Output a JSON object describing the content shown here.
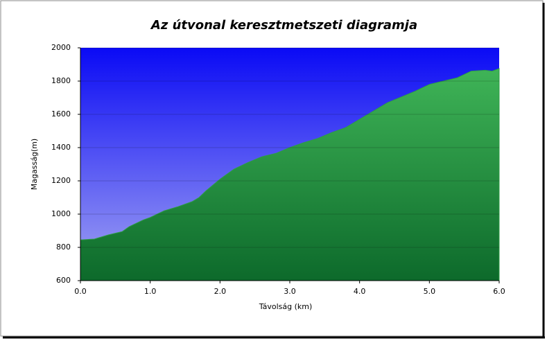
{
  "chart_data": {
    "type": "area",
    "title": "Az útvonal keresztmetszeti diagramja",
    "x_label": "Távolság  (km)",
    "y_label": "Magasság(m)",
    "x": [
      0.0,
      0.2,
      0.4,
      0.6,
      0.7,
      0.9,
      1.0,
      1.2,
      1.4,
      1.6,
      1.7,
      1.8,
      2.0,
      2.2,
      2.4,
      2.6,
      2.8,
      3.0,
      3.2,
      3.4,
      3.6,
      3.8,
      4.0,
      4.2,
      4.4,
      4.6,
      4.8,
      5.0,
      5.2,
      5.4,
      5.6,
      5.8,
      5.9,
      6.0
    ],
    "values": [
      845,
      850,
      875,
      895,
      925,
      965,
      980,
      1020,
      1045,
      1075,
      1100,
      1140,
      1210,
      1270,
      1310,
      1345,
      1365,
      1400,
      1430,
      1455,
      1490,
      1520,
      1570,
      1620,
      1670,
      1705,
      1740,
      1780,
      1800,
      1820,
      1860,
      1865,
      1860,
      1875
    ],
    "color": "#2e9c45",
    "xlim": [
      0,
      6
    ],
    "ylim": [
      600,
      2000
    ],
    "xticks": [
      {
        "value": 0,
        "label": "0.0"
      },
      {
        "value": 1,
        "label": "1.0"
      },
      {
        "value": 2,
        "label": "2.0"
      },
      {
        "value": 3,
        "label": "3.0"
      },
      {
        "value": 4,
        "label": "4.0"
      },
      {
        "value": 5,
        "label": "5.0"
      },
      {
        "value": 6,
        "label": "6.0"
      }
    ],
    "yticks": [
      600,
      800,
      1000,
      1200,
      1400,
      1600,
      1800,
      2000
    ],
    "grid": true
  }
}
